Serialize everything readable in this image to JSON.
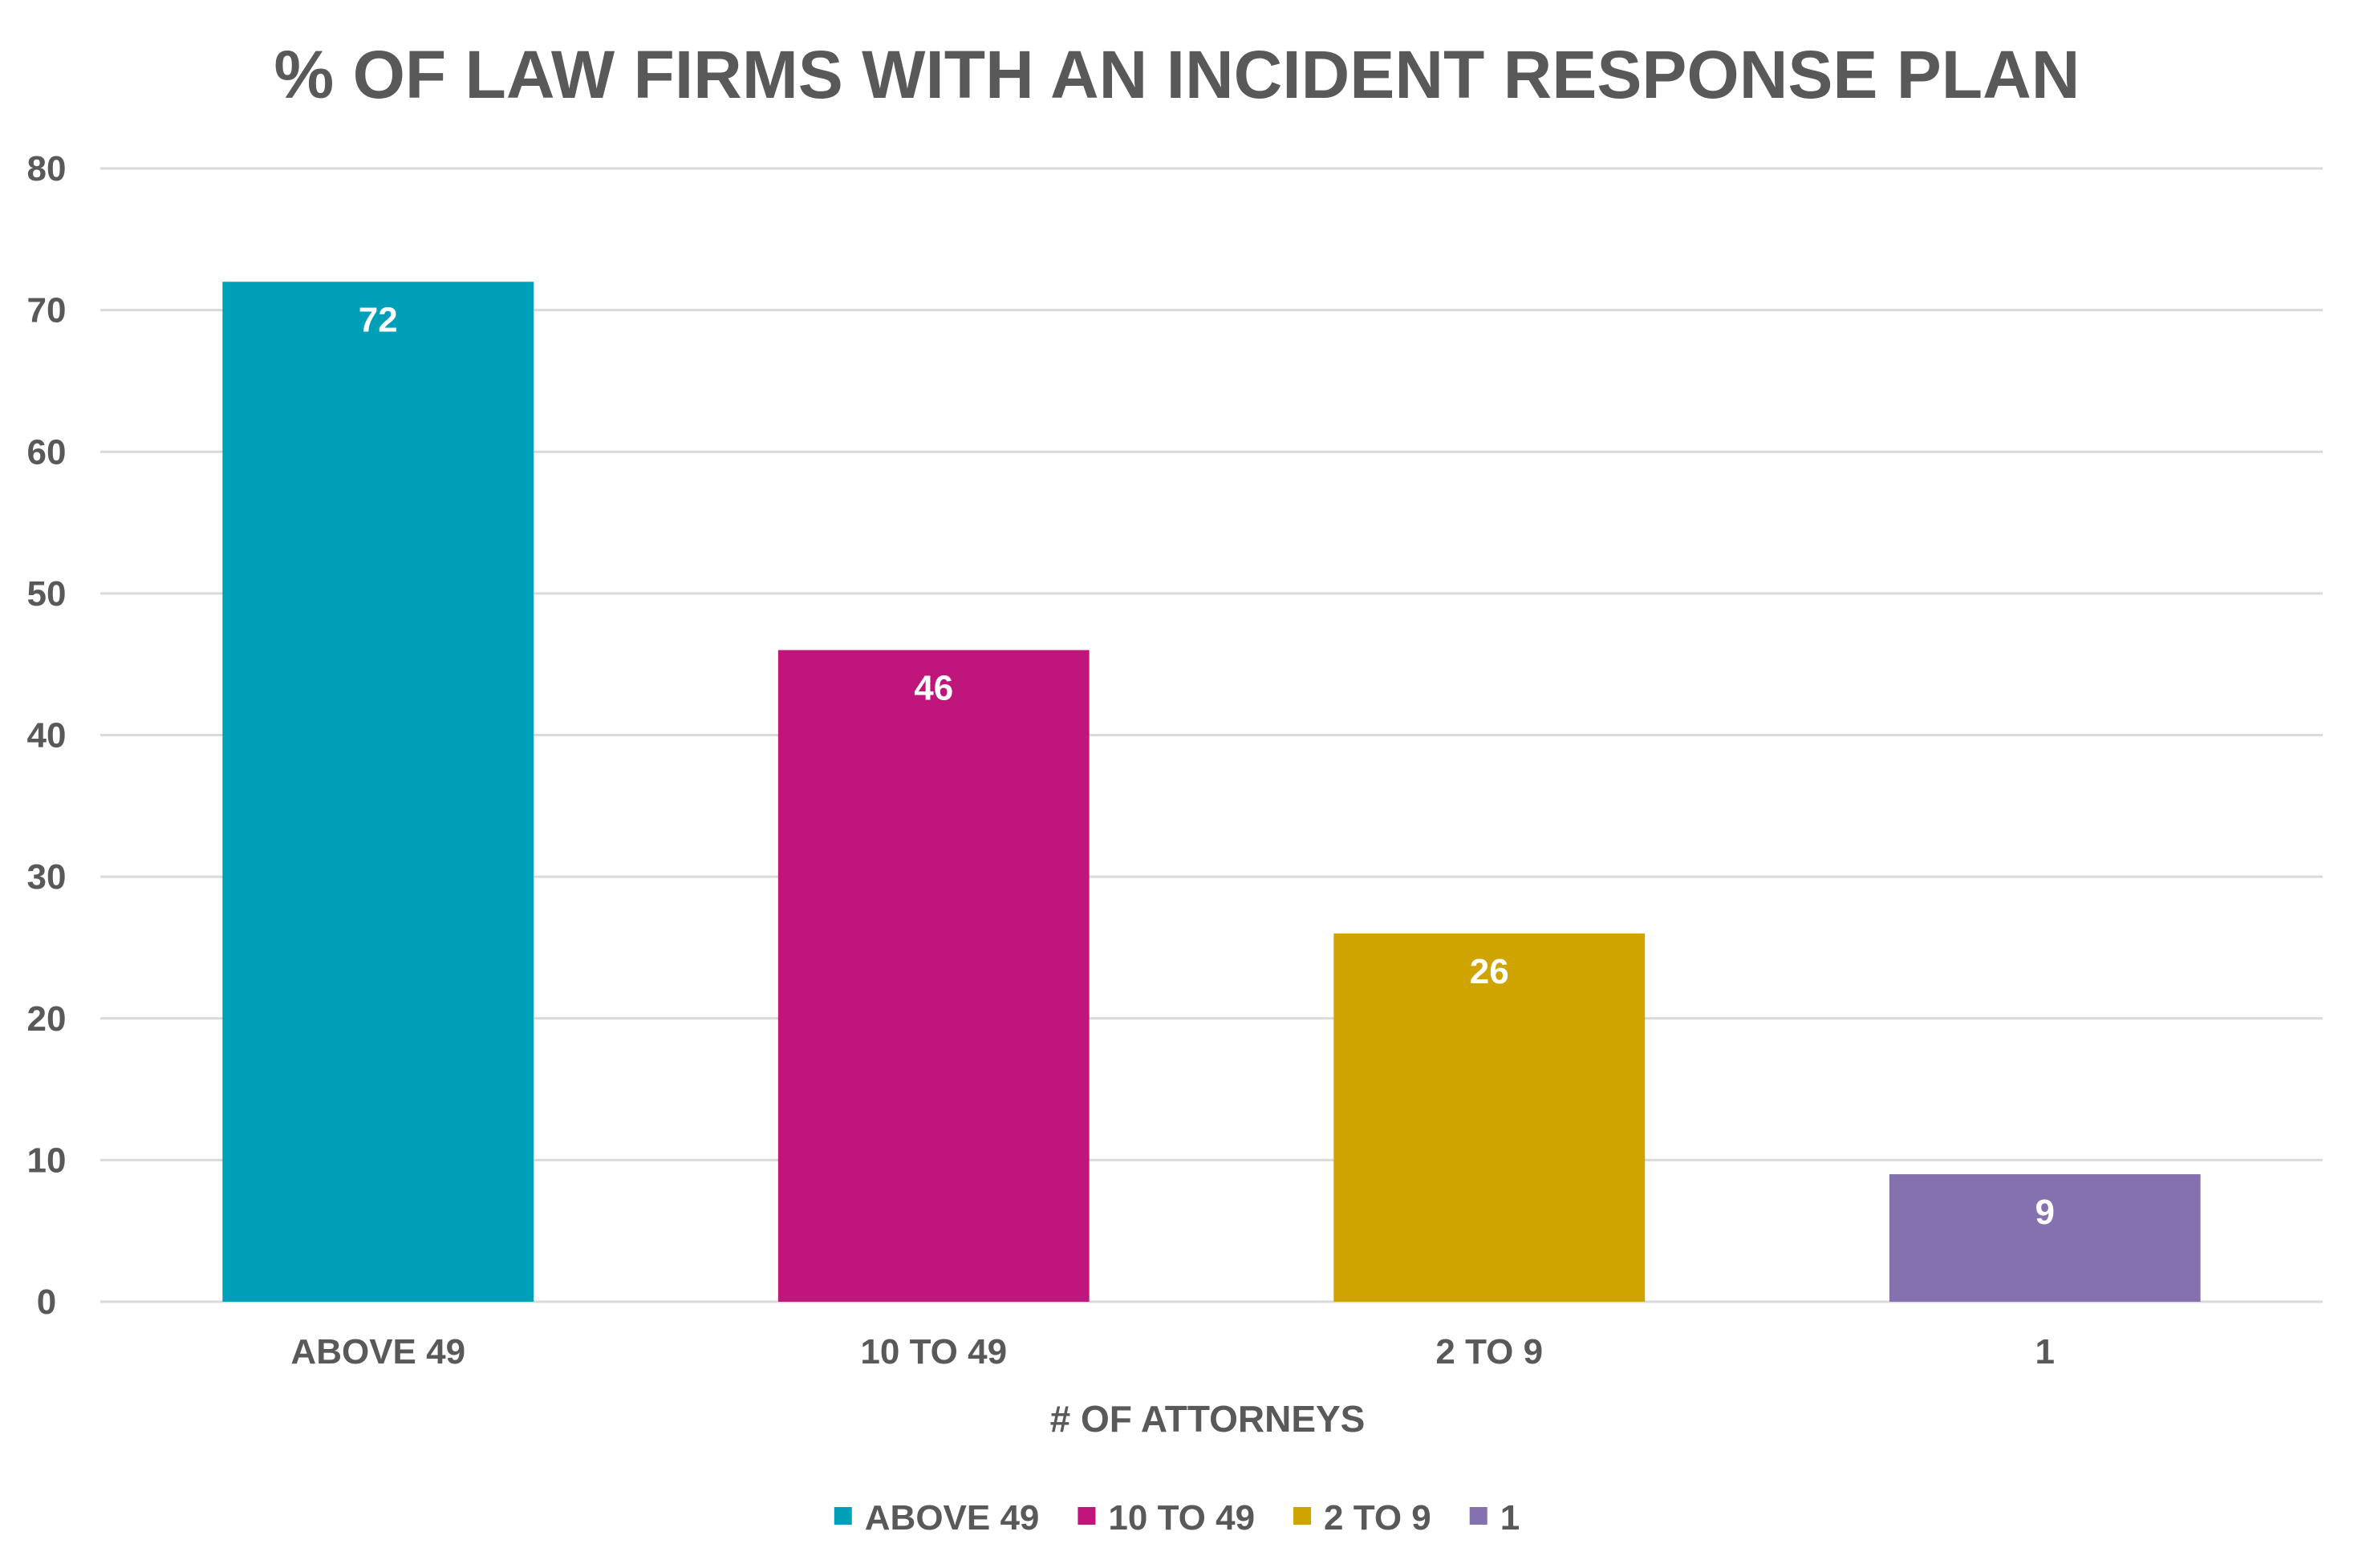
{
  "chart_data": {
    "type": "bar",
    "title": "% OF LAW FIRMS WITH AN INCIDENT RESPONSE PLAN",
    "xlabel": "# OF ATTORNEYS",
    "ylabel": "",
    "ylim": [
      0,
      80
    ],
    "yticks": [
      "0",
      "10",
      "20",
      "30",
      "40",
      "50",
      "60",
      "70",
      "80"
    ],
    "grid": true,
    "legend_position": "bottom",
    "categories": [
      "ABOVE 49",
      "10 TO 49",
      "2 TO 9",
      "1"
    ],
    "values": [
      72,
      46,
      26,
      9
    ],
    "value_labels": [
      "72",
      "46",
      "26",
      "9"
    ],
    "colors": [
      "#009fb8",
      "#c0157b",
      "#cfa300",
      "#8570b0"
    ],
    "legend": [
      "ABOVE 49",
      "10 TO 49",
      "2 TO 9",
      "1"
    ]
  }
}
